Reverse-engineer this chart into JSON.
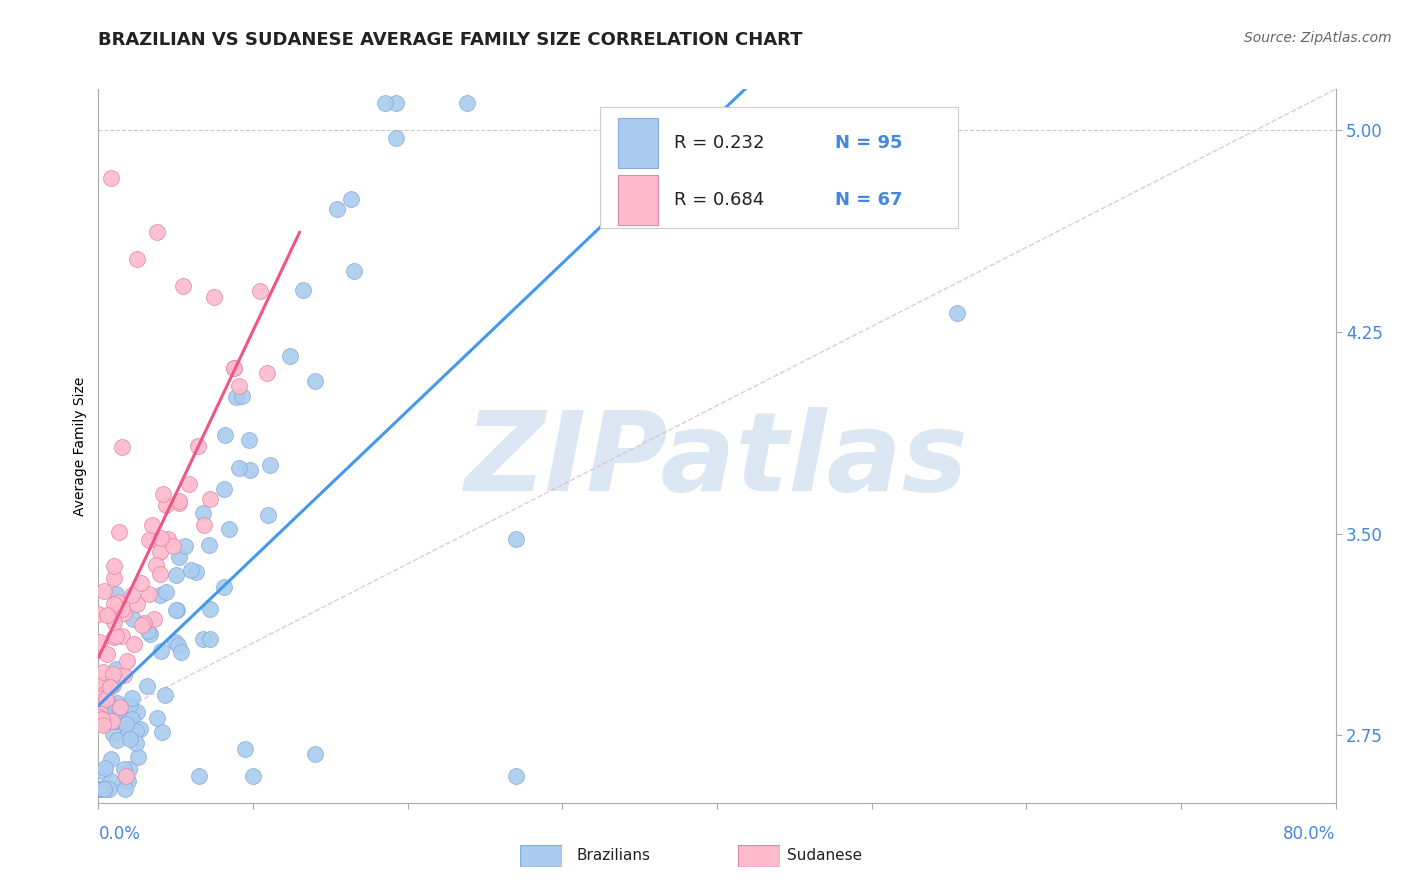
{
  "title": "BRAZILIAN VS SUDANESE AVERAGE FAMILY SIZE CORRELATION CHART",
  "source": "Source: ZipAtlas.com",
  "ylabel": "Average Family Size",
  "yticks": [
    2.75,
    3.5,
    4.25,
    5.0
  ],
  "xmin": 0.0,
  "xmax": 0.8,
  "ymin": 2.5,
  "ymax": 5.15,
  "brazilian_color": "#aaccee",
  "sudanese_color": "#ffbbcc",
  "brazilian_line_color": "#4499ee",
  "sudanese_line_color": "#ee5588",
  "diag_color": "#ddbbcc",
  "legend_r_brazilian": "R = 0.232",
  "legend_n_brazilian": "N = 95",
  "legend_r_sudanese": "R = 0.684",
  "legend_n_sudanese": "N = 67",
  "watermark": "ZIPatlas",
  "watermark_color": "#c5d8ee",
  "background_color": "#ffffff",
  "title_fontsize": 13,
  "source_fontsize": 10,
  "axis_label_fontsize": 10,
  "legend_fontsize": 13,
  "tick_fontsize": 12,
  "n_brazilian": 95,
  "n_sudanese": 67,
  "tick_color": "#4488dd",
  "xlabel_color": "#4488dd",
  "grid_color": "#cccccc",
  "spine_color": "#aaaaaa"
}
